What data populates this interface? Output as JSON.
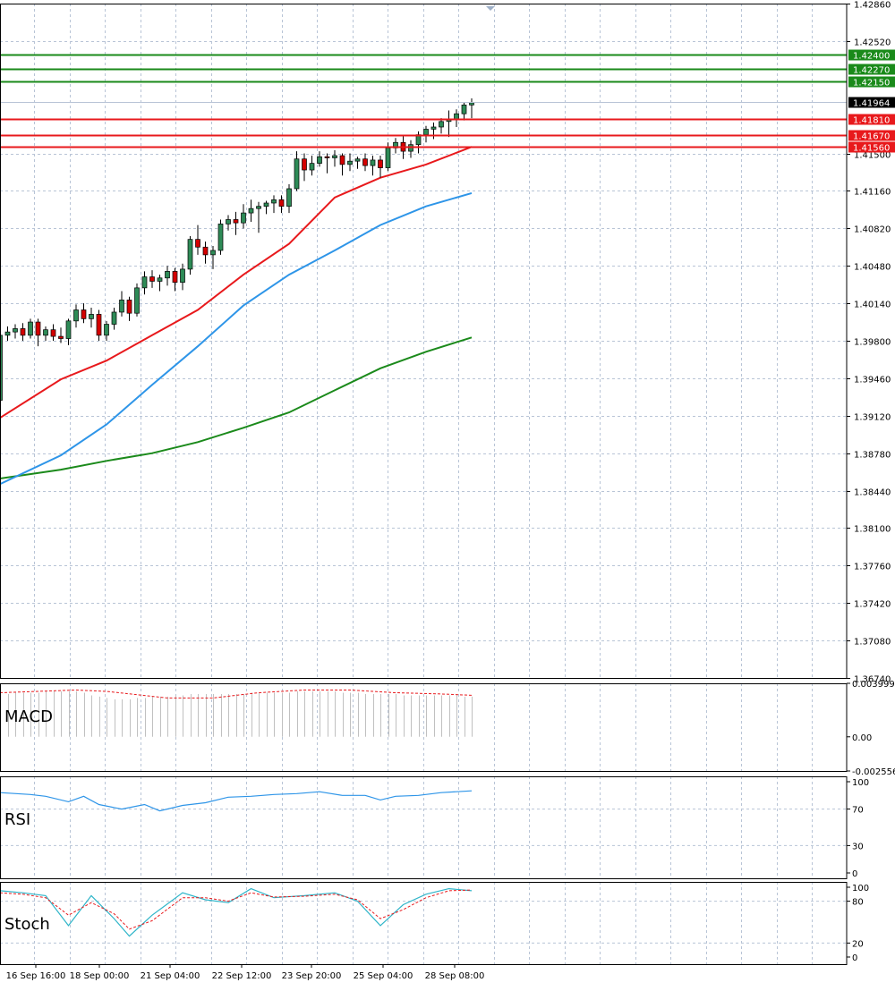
{
  "chart_data": {
    "type": "candlestick",
    "colors": {
      "bull": "#2e8b57",
      "bear": "#d40000",
      "grid": "#b8c4d6",
      "ma_fast": "#e8191c",
      "ma_mid": "#2e95e8",
      "ma_slow": "#1b8a1b",
      "resistance": "#1a8a1a",
      "support": "#e8191c",
      "current": "#000000",
      "macd_signal": "#e8191c",
      "rsi": "#2e95e8",
      "stoch_main": "#2fb5c9",
      "stoch_signal": "#e8191c"
    },
    "price_axis": {
      "ticks": [
        "1.42860",
        "1.42520",
        "1.41500",
        "1.41160",
        "1.40820",
        "1.40480",
        "1.40140",
        "1.39800",
        "1.39460",
        "1.39120",
        "1.38780",
        "1.38440",
        "1.38100",
        "1.37760",
        "1.37420",
        "1.37080",
        "1.36740"
      ],
      "ylim": [
        1.3674,
        1.4286
      ]
    },
    "levels": {
      "resistance": [
        "1.42400",
        "1.42270",
        "1.42150"
      ],
      "support": [
        "1.41810",
        "1.41670",
        "1.41560"
      ],
      "current": "1.41964"
    },
    "x_labels": [
      "16 Sep 16:00",
      "18 Sep 00:00",
      "21 Sep 04:00",
      "22 Sep 12:00",
      "23 Sep 20:00",
      "25 Sep 04:00",
      "28 Sep 08:00"
    ],
    "candles": [
      [
        1.3926,
        1.3988,
        1.392,
        1.3985
      ],
      [
        1.3985,
        1.3993,
        1.398,
        1.3988
      ],
      [
        1.3988,
        1.3995,
        1.3982,
        1.3991
      ],
      [
        1.3991,
        1.3996,
        1.398,
        1.3985
      ],
      [
        1.3985,
        1.4,
        1.3982,
        1.3997
      ],
      [
        1.3997,
        1.4,
        1.3975,
        1.3985
      ],
      [
        1.3985,
        1.3993,
        1.398,
        1.399
      ],
      [
        1.399,
        1.3995,
        1.398,
        1.3984
      ],
      [
        1.3984,
        1.3992,
        1.3978,
        1.3982
      ],
      [
        1.3982,
        1.4,
        1.3976,
        1.3998
      ],
      [
        1.3998,
        1.4013,
        1.3992,
        1.4008
      ],
      [
        1.4008,
        1.4014,
        1.3996,
        1.4
      ],
      [
        1.4,
        1.401,
        1.3992,
        1.4004
      ],
      [
        1.4004,
        1.4008,
        1.398,
        1.3985
      ],
      [
        1.3985,
        1.3998,
        1.398,
        1.3995
      ],
      [
        1.3995,
        1.401,
        1.399,
        1.4006
      ],
      [
        1.4006,
        1.4025,
        1.4002,
        1.4017
      ],
      [
        1.4017,
        1.402,
        1.3998,
        1.4005
      ],
      [
        1.4005,
        1.4032,
        1.4002,
        1.4028
      ],
      [
        1.4028,
        1.4043,
        1.4022,
        1.4038
      ],
      [
        1.4038,
        1.4044,
        1.4028,
        1.4034
      ],
      [
        1.4034,
        1.404,
        1.4025,
        1.4037
      ],
      [
        1.4037,
        1.4048,
        1.403,
        1.4043
      ],
      [
        1.4043,
        1.4046,
        1.4025,
        1.4033
      ],
      [
        1.4033,
        1.405,
        1.4026,
        1.4045
      ],
      [
        1.4045,
        1.4075,
        1.404,
        1.4072
      ],
      [
        1.4072,
        1.4085,
        1.4058,
        1.4065
      ],
      [
        1.4065,
        1.407,
        1.405,
        1.4058
      ],
      [
        1.4058,
        1.4066,
        1.4045,
        1.4062
      ],
      [
        1.4062,
        1.409,
        1.4058,
        1.4086
      ],
      [
        1.4086,
        1.4094,
        1.408,
        1.409
      ],
      [
        1.409,
        1.4097,
        1.4076,
        1.4087
      ],
      [
        1.4087,
        1.4104,
        1.4082,
        1.4096
      ],
      [
        1.4096,
        1.4108,
        1.4088,
        1.41
      ],
      [
        1.41,
        1.4106,
        1.4078,
        1.4102
      ],
      [
        1.4102,
        1.4107,
        1.4095,
        1.4105
      ],
      [
        1.4105,
        1.4112,
        1.4096,
        1.4108
      ],
      [
        1.4108,
        1.4112,
        1.4096,
        1.4102
      ],
      [
        1.4102,
        1.4122,
        1.4096,
        1.4118
      ],
      [
        1.4118,
        1.4152,
        1.4116,
        1.4145
      ],
      [
        1.4145,
        1.415,
        1.4125,
        1.4135
      ],
      [
        1.4135,
        1.4148,
        1.413,
        1.4141
      ],
      [
        1.4141,
        1.4152,
        1.4138,
        1.4147
      ],
      [
        1.4147,
        1.415,
        1.4132,
        1.4146
      ],
      [
        1.4146,
        1.4153,
        1.4138,
        1.4148
      ],
      [
        1.4148,
        1.415,
        1.413,
        1.414
      ],
      [
        1.414,
        1.415,
        1.4134,
        1.4143
      ],
      [
        1.4143,
        1.4147,
        1.4136,
        1.4145
      ],
      [
        1.4145,
        1.415,
        1.4134,
        1.4139
      ],
      [
        1.4139,
        1.4148,
        1.413,
        1.4144
      ],
      [
        1.4144,
        1.4148,
        1.4128,
        1.4137
      ],
      [
        1.4137,
        1.416,
        1.4134,
        1.4155
      ],
      [
        1.4155,
        1.4164,
        1.415,
        1.416
      ],
      [
        1.416,
        1.4166,
        1.4145,
        1.4152
      ],
      [
        1.4152,
        1.4162,
        1.4146,
        1.4158
      ],
      [
        1.4158,
        1.417,
        1.415,
        1.4167
      ],
      [
        1.4167,
        1.4175,
        1.416,
        1.4172
      ],
      [
        1.4172,
        1.4178,
        1.4163,
        1.4174
      ],
      [
        1.4174,
        1.4182,
        1.4168,
        1.4179
      ],
      [
        1.4179,
        1.4189,
        1.4165,
        1.4181
      ],
      [
        1.4181,
        1.419,
        1.4174,
        1.4186
      ],
      [
        1.4186,
        1.4196,
        1.418,
        1.4194
      ],
      [
        1.4194,
        1.42,
        1.4182,
        1.4196
      ]
    ],
    "ma_fast": [
      [
        0,
        1.391
      ],
      [
        8,
        1.3945
      ],
      [
        14,
        1.3962
      ],
      [
        20,
        1.3985
      ],
      [
        26,
        1.4008
      ],
      [
        32,
        1.404
      ],
      [
        38,
        1.4068
      ],
      [
        44,
        1.411
      ],
      [
        50,
        1.4128
      ],
      [
        56,
        1.414
      ],
      [
        62,
        1.4156
      ]
    ],
    "ma_mid": [
      [
        0,
        1.385
      ],
      [
        8,
        1.3876
      ],
      [
        14,
        1.3904
      ],
      [
        20,
        1.394
      ],
      [
        26,
        1.3975
      ],
      [
        32,
        1.4012
      ],
      [
        38,
        1.404
      ],
      [
        44,
        1.4062
      ],
      [
        50,
        1.4085
      ],
      [
        56,
        1.4102
      ],
      [
        62,
        1.4114
      ]
    ],
    "ma_slow": [
      [
        0,
        1.3855
      ],
      [
        8,
        1.3863
      ],
      [
        14,
        1.3871
      ],
      [
        20,
        1.3878
      ],
      [
        26,
        1.3888
      ],
      [
        32,
        1.3901
      ],
      [
        38,
        1.3915
      ],
      [
        44,
        1.3935
      ],
      [
        50,
        1.3955
      ],
      [
        56,
        1.397
      ],
      [
        62,
        1.3983
      ]
    ],
    "macd": {
      "label": "MACD",
      "ticks": [
        "0.003999",
        "0.00",
        "-0.002556"
      ],
      "ylim": [
        -0.002556,
        0.003999
      ],
      "histogram": [
        0.0032,
        0.0032,
        0.0033,
        0.0033,
        0.0033,
        0.0033,
        0.0034,
        0.0034,
        0.0034,
        0.0034,
        0.0034,
        0.0033,
        0.0031,
        0.003,
        0.0029,
        0.0028,
        0.0028,
        0.0028,
        0.0029,
        0.0029,
        0.003,
        0.003,
        0.003,
        0.0031,
        0.0031,
        0.0032,
        0.0032,
        0.0032,
        0.0032,
        0.0032,
        0.0032,
        0.0032,
        0.0032,
        0.0033,
        0.0033,
        0.0033,
        0.0033,
        0.0033,
        0.0033,
        0.0034,
        0.0034,
        0.0034,
        0.0034,
        0.0034,
        0.0034,
        0.0033,
        0.0033,
        0.0033,
        0.0032,
        0.0032,
        0.0032,
        0.0032,
        0.0032,
        0.0031,
        0.0031,
        0.0031,
        0.0031,
        0.0031,
        0.0031,
        0.0031,
        0.0031,
        0.003,
        0.003
      ],
      "signal": [
        [
          0,
          0.0033
        ],
        [
          10,
          0.0035
        ],
        [
          14,
          0.0034
        ],
        [
          22,
          0.0029
        ],
        [
          28,
          0.0029
        ],
        [
          34,
          0.0033
        ],
        [
          40,
          0.0035
        ],
        [
          46,
          0.0035
        ],
        [
          52,
          0.0033
        ],
        [
          58,
          0.0032
        ],
        [
          62,
          0.0031
        ]
      ]
    },
    "rsi": {
      "label": "RSI",
      "ticks": [
        "100",
        "70",
        "30",
        "0"
      ],
      "ylim": [
        0,
        100
      ],
      "values": [
        [
          0,
          88
        ],
        [
          4,
          86
        ],
        [
          6,
          84
        ],
        [
          9,
          78
        ],
        [
          11,
          84
        ],
        [
          13,
          75
        ],
        [
          16,
          70
        ],
        [
          19,
          75
        ],
        [
          21,
          68
        ],
        [
          24,
          74
        ],
        [
          27,
          77
        ],
        [
          30,
          83
        ],
        [
          33,
          84
        ],
        [
          36,
          86
        ],
        [
          39,
          87
        ],
        [
          42,
          89
        ],
        [
          45,
          85
        ],
        [
          48,
          85
        ],
        [
          50,
          80
        ],
        [
          52,
          84
        ],
        [
          55,
          85
        ],
        [
          58,
          88
        ],
        [
          62,
          90
        ]
      ]
    },
    "stoch": {
      "label": "Stoch",
      "ticks": [
        "100",
        "80",
        "20",
        "0"
      ],
      "ylim": [
        0,
        100
      ],
      "main": [
        [
          0,
          95
        ],
        [
          3,
          92
        ],
        [
          6,
          88
        ],
        [
          9,
          45
        ],
        [
          12,
          88
        ],
        [
          15,
          55
        ],
        [
          17,
          30
        ],
        [
          20,
          60
        ],
        [
          24,
          92
        ],
        [
          27,
          82
        ],
        [
          30,
          78
        ],
        [
          33,
          98
        ],
        [
          36,
          85
        ],
        [
          40,
          88
        ],
        [
          44,
          92
        ],
        [
          47,
          80
        ],
        [
          50,
          45
        ],
        [
          53,
          75
        ],
        [
          56,
          90
        ],
        [
          59,
          98
        ],
        [
          62,
          95
        ]
      ],
      "signal": [
        [
          0,
          92
        ],
        [
          3,
          90
        ],
        [
          6,
          85
        ],
        [
          9,
          60
        ],
        [
          12,
          78
        ],
        [
          15,
          62
        ],
        [
          17,
          40
        ],
        [
          20,
          52
        ],
        [
          24,
          85
        ],
        [
          27,
          85
        ],
        [
          30,
          80
        ],
        [
          33,
          92
        ],
        [
          36,
          86
        ],
        [
          40,
          87
        ],
        [
          44,
          90
        ],
        [
          47,
          82
        ],
        [
          50,
          55
        ],
        [
          53,
          68
        ],
        [
          56,
          85
        ],
        [
          59,
          95
        ],
        [
          62,
          96
        ]
      ]
    }
  }
}
